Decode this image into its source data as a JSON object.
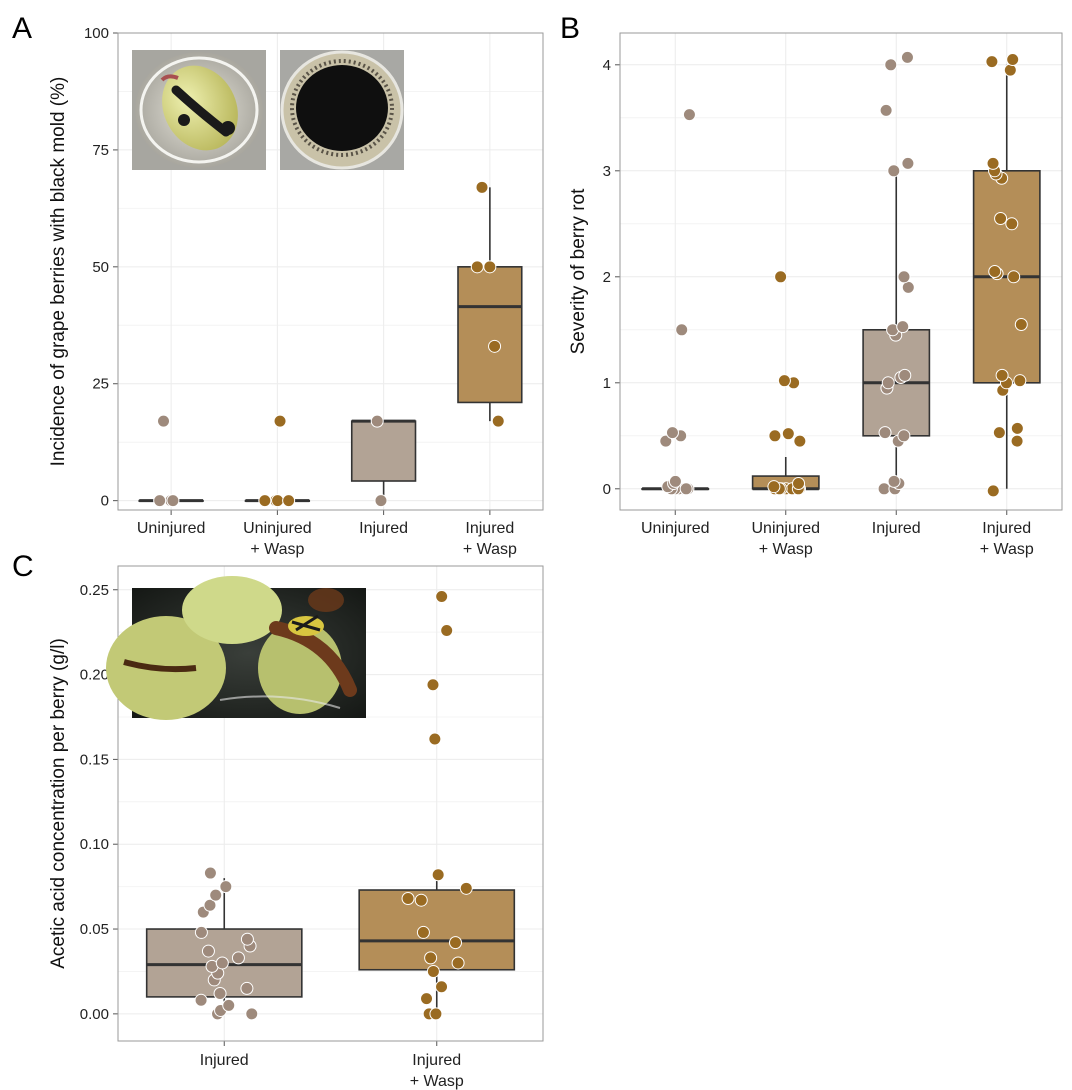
{
  "colors": {
    "uninjured_point": "#9e8a7c",
    "wasp_point": "#9a6b22",
    "injured_box": "#b2a395",
    "wasp_box": "#b48e58"
  },
  "chart_data": [
    {
      "panel": "A",
      "type": "box",
      "ylabel": "Incidence of grape berries with black mold (%)",
      "ylim": [
        -2,
        100
      ],
      "yticks": [
        0,
        25,
        50,
        75,
        100
      ],
      "categories": [
        "Uninjured",
        "Uninjured\n+ Wasp",
        "Injured",
        "Injured\n+ Wasp"
      ],
      "boxes": [
        {
          "q1": 0,
          "median": 0,
          "q3": 0,
          "whisker_low": 0,
          "whisker_high": 0
        },
        {
          "q1": 0,
          "median": 0,
          "q3": 0,
          "whisker_low": 0,
          "whisker_high": 0
        },
        {
          "q1": 4.2,
          "median": 17,
          "q3": 17,
          "whisker_low": 0,
          "whisker_high": 17
        },
        {
          "q1": 21,
          "median": 41.5,
          "q3": 50,
          "whisker_low": 17,
          "whisker_high": 67
        }
      ],
      "points": [
        [
          0,
          0,
          0,
          17
        ],
        [
          0,
          0,
          0,
          0,
          17
        ],
        [
          0,
          17
        ],
        [
          17,
          33,
          50,
          50,
          67
        ]
      ]
    },
    {
      "panel": "B",
      "type": "box",
      "ylabel": "Severity of berry rot",
      "ylim": [
        -0.2,
        4.3
      ],
      "yticks": [
        0,
        1,
        2,
        3,
        4
      ],
      "categories": [
        "Uninjured",
        "Uninjured\n+ Wasp",
        "Injured",
        "Injured\n+ Wasp"
      ],
      "boxes": [
        {
          "q1": 0,
          "median": 0,
          "q3": 0,
          "whisker_low": 0,
          "whisker_high": 0
        },
        {
          "q1": 0,
          "median": 0,
          "q3": 0.12,
          "whisker_low": 0,
          "whisker_high": 0.3
        },
        {
          "q1": 0.5,
          "median": 1,
          "q3": 1.5,
          "whisker_low": 0,
          "whisker_high": 3
        },
        {
          "q1": 1,
          "median": 2,
          "q3": 3,
          "whisker_low": 0,
          "whisker_high": 4
        }
      ],
      "points": [
        [
          0,
          0,
          0,
          0,
          0,
          0,
          0,
          0,
          0,
          0,
          0,
          0.02,
          0.05,
          0.07,
          0.45,
          0.5,
          0.53,
          1.5,
          3.53
        ],
        [
          0,
          0,
          0,
          0,
          0,
          0,
          0,
          0,
          0,
          0.02,
          0.05,
          0.45,
          0.5,
          0.52,
          1.0,
          1.02,
          2.0
        ],
        [
          0,
          0,
          0.05,
          0.07,
          0.45,
          0.5,
          0.53,
          0.95,
          1.0,
          1.05,
          1.07,
          1.45,
          1.5,
          1.53,
          1.9,
          2.0,
          3.0,
          3.07,
          3.57,
          4.0,
          4.07
        ],
        [
          -0.02,
          0.45,
          0.53,
          0.57,
          0.93,
          1.0,
          1.02,
          1.07,
          1.55,
          2.0,
          2.03,
          2.05,
          2.5,
          2.55,
          2.93,
          2.97,
          3.0,
          3.07,
          3.95,
          4.03,
          4.05
        ]
      ]
    },
    {
      "panel": "C",
      "type": "box",
      "ylabel": "Acetic acid concentration per berry (g/l)",
      "ylim": [
        -0.016,
        0.264
      ],
      "yticks": [
        "0.00",
        "0.05",
        "0.10",
        "0.15",
        "0.20",
        "0.25"
      ],
      "categories": [
        "Injured",
        "Injured\n+ Wasp"
      ],
      "boxes": [
        {
          "q1": 0.01,
          "median": 0.029,
          "q3": 0.05,
          "whisker_low": 0,
          "whisker_high": 0.08
        },
        {
          "q1": 0.026,
          "median": 0.043,
          "q3": 0.073,
          "whisker_low": 0,
          "whisker_high": 0.083
        }
      ],
      "points": [
        [
          0,
          0,
          0.002,
          0.005,
          0.008,
          0.012,
          0.015,
          0.02,
          0.024,
          0.028,
          0.03,
          0.033,
          0.037,
          0.04,
          0.044,
          0.048,
          0.06,
          0.064,
          0.07,
          0.075,
          0.083
        ],
        [
          0,
          0,
          0.009,
          0.016,
          0.025,
          0.03,
          0.033,
          0.042,
          0.048,
          0.067,
          0.068,
          0.074,
          0.082,
          0.162,
          0.194,
          0.226,
          0.246
        ]
      ]
    }
  ]
}
